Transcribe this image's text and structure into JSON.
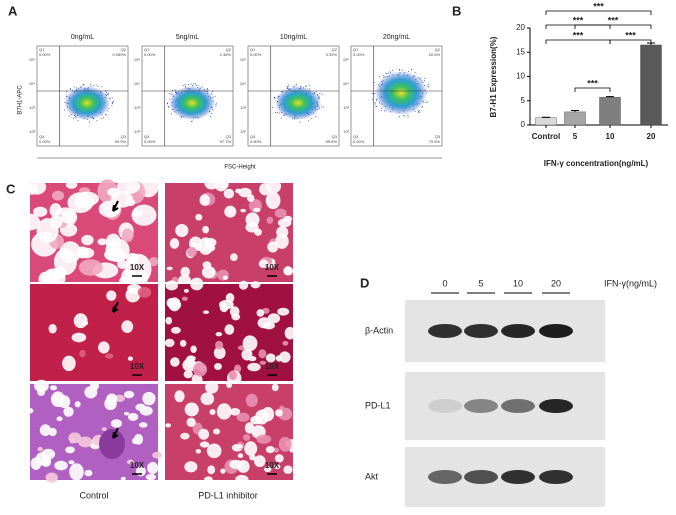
{
  "panel_labels": [
    "A",
    "B",
    "C",
    "D"
  ],
  "flow": {
    "y_label": "B7H1-APC",
    "x_label": "FSC-Height",
    "ticks": [
      "10⁵",
      "10⁴",
      "10³",
      "10²"
    ],
    "plots": [
      {
        "title": "0ng/mL",
        "quadrants": [
          [
            "Q1",
            "0.00%"
          ],
          [
            "Q2",
            "0.059%"
          ],
          [
            "Q4",
            "0.00%"
          ],
          [
            "Q3",
            "99.9%"
          ]
        ]
      },
      {
        "title": "5ng/mL",
        "quadrants": [
          [
            "Q1",
            "0.00%"
          ],
          [
            "Q2",
            "2.38%"
          ],
          [
            "Q4",
            "0.00%"
          ],
          [
            "Q3",
            "97.7%"
          ]
        ]
      },
      {
        "title": "10ng/mL",
        "quadrants": [
          [
            "Q1",
            "0.00%"
          ],
          [
            "Q2",
            "4.39%"
          ],
          [
            "Q4",
            "0.00%"
          ],
          [
            "Q3",
            "95.6%"
          ]
        ]
      },
      {
        "title": "20ng/mL",
        "quadrants": [
          [
            "Q1",
            "0.00%"
          ],
          [
            "Q2",
            "20.5%"
          ],
          [
            "Q4",
            "0.00%"
          ],
          [
            "Q3",
            "79.5%"
          ]
        ]
      }
    ]
  },
  "chart_data": {
    "type": "bar",
    "x_label": "IFN-γ concentration(ng/mL)",
    "y_label": "B7-H1 Expression(%)",
    "categories": [
      "Control",
      "5",
      "10",
      "20"
    ],
    "values": [
      1.5,
      2.7,
      5.7,
      16.5
    ],
    "errors": [
      0.1,
      0.3,
      0.15,
      0.4
    ],
    "colors": [
      "#d9d9d9",
      "#a6a6a6",
      "#7f7f7f",
      "#595959"
    ],
    "ylim": [
      0,
      20
    ],
    "yticks": [
      0,
      5,
      10,
      15,
      20
    ],
    "annotations": [
      "***",
      "***",
      "***",
      "***",
      "***",
      "***"
    ]
  },
  "histology": {
    "magnification": "10X",
    "columns": [
      "Control",
      "PD-L1 inhibitor"
    ]
  },
  "blot": {
    "lanes": [
      "0",
      "5",
      "10",
      "20"
    ],
    "treatment": "IFN-γ(ng/mL)",
    "rows": [
      "β-Actin",
      "PD-L1",
      "Akt"
    ]
  }
}
